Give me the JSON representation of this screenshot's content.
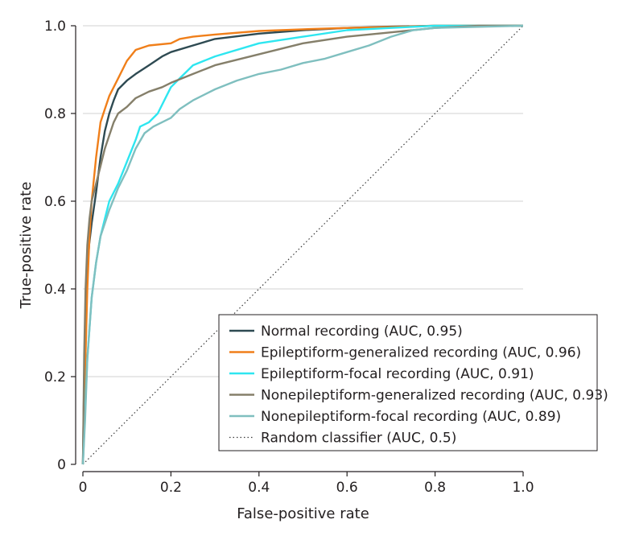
{
  "chart_data": {
    "type": "line",
    "title": "",
    "xlabel": "False-positive rate",
    "ylabel": "True-positive rate",
    "xlim": [
      0,
      1
    ],
    "ylim": [
      0,
      1
    ],
    "x_ticks": [
      0,
      0.2,
      0.4,
      0.6,
      0.8,
      1.0
    ],
    "x_tick_labels": [
      "0",
      "0.2",
      "0.4",
      "0.6",
      "0.8",
      "1.0"
    ],
    "y_ticks": [
      0,
      0.2,
      0.4,
      0.6,
      0.8,
      1.0
    ],
    "y_tick_labels": [
      "0",
      "0.2",
      "0.4",
      "0.6",
      "0.8",
      "1.0"
    ],
    "grid": "horizontal",
    "legend_position": "bottom-right",
    "series": [
      {
        "name": "Normal recording (AUC, 0.95)",
        "color": "#2e4a52",
        "dashed": false,
        "points": [
          [
            0,
            0
          ],
          [
            0.003,
            0.2
          ],
          [
            0.006,
            0.34
          ],
          [
            0.01,
            0.44
          ],
          [
            0.014,
            0.5
          ],
          [
            0.02,
            0.55
          ],
          [
            0.03,
            0.62
          ],
          [
            0.04,
            0.7
          ],
          [
            0.05,
            0.76
          ],
          [
            0.06,
            0.8
          ],
          [
            0.07,
            0.83
          ],
          [
            0.08,
            0.855
          ],
          [
            0.1,
            0.875
          ],
          [
            0.12,
            0.89
          ],
          [
            0.15,
            0.91
          ],
          [
            0.18,
            0.93
          ],
          [
            0.2,
            0.94
          ],
          [
            0.25,
            0.955
          ],
          [
            0.3,
            0.97
          ],
          [
            0.4,
            0.982
          ],
          [
            0.5,
            0.99
          ],
          [
            0.6,
            0.995
          ],
          [
            0.7,
            0.998
          ],
          [
            0.8,
            1.0
          ],
          [
            1.0,
            1.0
          ]
        ]
      },
      {
        "name": "Epileptiform-generalized recording (AUC, 0.96)",
        "color": "#f07f1a",
        "dashed": false,
        "points": [
          [
            0,
            0
          ],
          [
            0.003,
            0.1
          ],
          [
            0.006,
            0.25
          ],
          [
            0.01,
            0.4
          ],
          [
            0.015,
            0.52
          ],
          [
            0.02,
            0.6
          ],
          [
            0.03,
            0.7
          ],
          [
            0.04,
            0.78
          ],
          [
            0.05,
            0.81
          ],
          [
            0.06,
            0.84
          ],
          [
            0.08,
            0.88
          ],
          [
            0.1,
            0.92
          ],
          [
            0.12,
            0.945
          ],
          [
            0.15,
            0.955
          ],
          [
            0.2,
            0.96
          ],
          [
            0.22,
            0.97
          ],
          [
            0.25,
            0.975
          ],
          [
            0.3,
            0.98
          ],
          [
            0.4,
            0.988
          ],
          [
            0.5,
            0.992
          ],
          [
            0.6,
            0.995
          ],
          [
            0.7,
            0.997
          ],
          [
            0.8,
            1.0
          ],
          [
            1.0,
            1.0
          ]
        ]
      },
      {
        "name": "Epileptiform-focal recording (AUC, 0.91)",
        "color": "#2ee6f0",
        "dashed": false,
        "points": [
          [
            0,
            0
          ],
          [
            0.005,
            0.12
          ],
          [
            0.01,
            0.24
          ],
          [
            0.02,
            0.38
          ],
          [
            0.03,
            0.46
          ],
          [
            0.04,
            0.52
          ],
          [
            0.05,
            0.56
          ],
          [
            0.06,
            0.6
          ],
          [
            0.08,
            0.64
          ],
          [
            0.1,
            0.69
          ],
          [
            0.12,
            0.74
          ],
          [
            0.13,
            0.77
          ],
          [
            0.15,
            0.78
          ],
          [
            0.17,
            0.8
          ],
          [
            0.19,
            0.84
          ],
          [
            0.2,
            0.86
          ],
          [
            0.22,
            0.88
          ],
          [
            0.25,
            0.91
          ],
          [
            0.3,
            0.93
          ],
          [
            0.4,
            0.96
          ],
          [
            0.5,
            0.975
          ],
          [
            0.6,
            0.99
          ],
          [
            0.7,
            0.995
          ],
          [
            0.8,
            1.0
          ],
          [
            1.0,
            1.0
          ]
        ]
      },
      {
        "name": "Nonepileptiform-generalized recording (AUC, 0.93)",
        "color": "#857f6a",
        "dashed": false,
        "points": [
          [
            0,
            0
          ],
          [
            0.003,
            0.25
          ],
          [
            0.006,
            0.4
          ],
          [
            0.01,
            0.5
          ],
          [
            0.015,
            0.56
          ],
          [
            0.02,
            0.6
          ],
          [
            0.03,
            0.64
          ],
          [
            0.04,
            0.68
          ],
          [
            0.05,
            0.72
          ],
          [
            0.06,
            0.75
          ],
          [
            0.07,
            0.78
          ],
          [
            0.08,
            0.8
          ],
          [
            0.1,
            0.815
          ],
          [
            0.12,
            0.835
          ],
          [
            0.15,
            0.85
          ],
          [
            0.18,
            0.86
          ],
          [
            0.2,
            0.87
          ],
          [
            0.25,
            0.89
          ],
          [
            0.3,
            0.91
          ],
          [
            0.4,
            0.935
          ],
          [
            0.5,
            0.96
          ],
          [
            0.6,
            0.975
          ],
          [
            0.7,
            0.985
          ],
          [
            0.8,
            0.995
          ],
          [
            0.9,
            1.0
          ],
          [
            1.0,
            1.0
          ]
        ]
      },
      {
        "name": "Nonepileptiform-focal recording (AUC, 0.89)",
        "color": "#7fbfbf",
        "dashed": false,
        "points": [
          [
            0,
            0
          ],
          [
            0.005,
            0.1
          ],
          [
            0.01,
            0.24
          ],
          [
            0.02,
            0.38
          ],
          [
            0.03,
            0.46
          ],
          [
            0.04,
            0.52
          ],
          [
            0.06,
            0.58
          ],
          [
            0.08,
            0.63
          ],
          [
            0.1,
            0.67
          ],
          [
            0.12,
            0.72
          ],
          [
            0.14,
            0.755
          ],
          [
            0.16,
            0.77
          ],
          [
            0.2,
            0.79
          ],
          [
            0.22,
            0.81
          ],
          [
            0.25,
            0.83
          ],
          [
            0.3,
            0.855
          ],
          [
            0.35,
            0.875
          ],
          [
            0.4,
            0.89
          ],
          [
            0.45,
            0.9
          ],
          [
            0.5,
            0.915
          ],
          [
            0.55,
            0.925
          ],
          [
            0.6,
            0.94
          ],
          [
            0.65,
            0.955
          ],
          [
            0.7,
            0.975
          ],
          [
            0.75,
            0.99
          ],
          [
            0.8,
            0.995
          ],
          [
            1.0,
            1.0
          ]
        ]
      },
      {
        "name": "Random classifier (AUC, 0.5)",
        "color": "#3a3a3a",
        "dashed": true,
        "points": [
          [
            0,
            0
          ],
          [
            1,
            1
          ]
        ]
      }
    ]
  }
}
